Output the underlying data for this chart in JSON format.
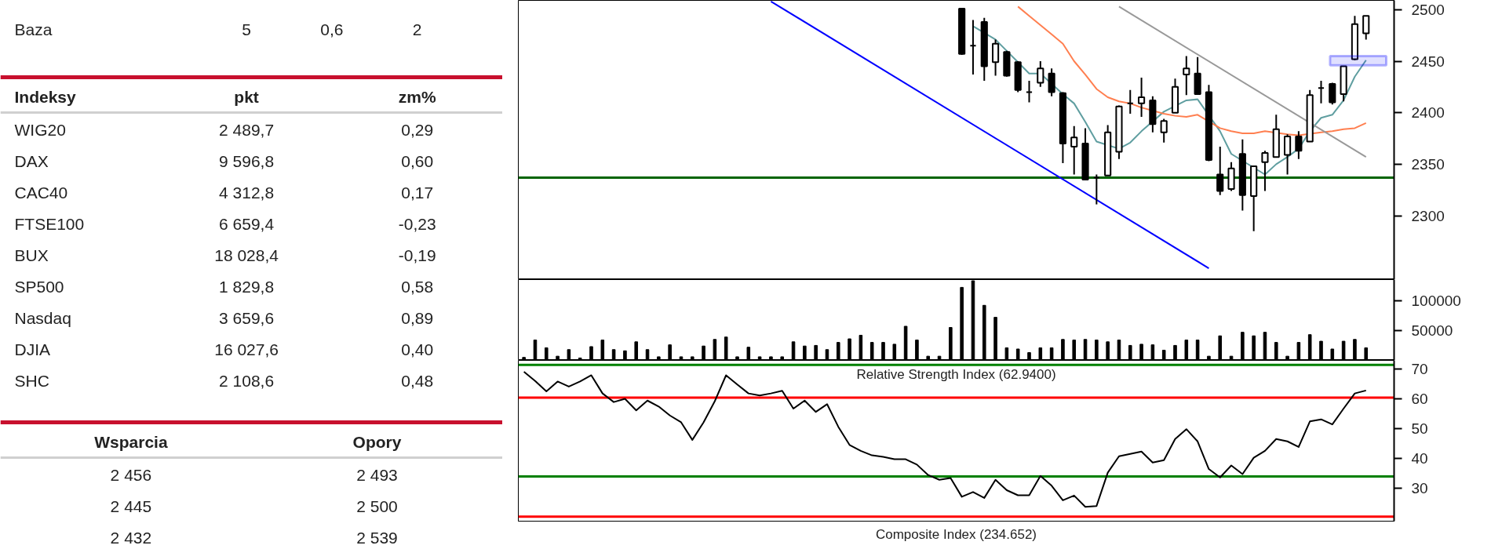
{
  "chart_data": [
    {
      "type": "other",
      "categories": [
        null,
        null,
        null,
        null
      ],
      "annotations": [
        "Baza",
        "5",
        "0,6",
        "2"
      ]
    },
    {
      "type": "other",
      "categories": [
        "Indeksy",
        "pkt",
        "zm%"
      ],
      "annotations": [
        "WIG20",
        "2 489,7",
        "0,29",
        "DAX",
        "9 596,8",
        "0,60",
        "CAC40",
        "4 312,8",
        "0,17",
        "FTSE100",
        "6 659,4",
        "-0,23",
        "BUX",
        "18 028,4",
        "-0,19",
        "SP500",
        "1 829,8",
        "0,58",
        "Nasdaq",
        "3 659,6",
        "0,89",
        "DJIA",
        "16 027,6",
        "0,40",
        "SHC",
        "2 108,6",
        "0,48"
      ]
    },
    {
      "type": "other",
      "categories": [
        "Wsparcia",
        "Opory"
      ],
      "annotations": [
        "2 456",
        "2 493",
        "2 445",
        "2 500",
        "2 432",
        "2 539"
      ]
    },
    {
      "type": "candlestick",
      "tick_labels": "y",
      "grid": false,
      "categories": [
        null,
        null,
        null,
        null,
        null,
        null,
        null,
        null,
        null,
        null,
        null,
        null,
        null,
        null,
        null,
        null,
        null,
        null,
        null,
        null,
        null,
        null,
        null,
        null,
        null,
        null,
        null,
        null,
        null,
        null,
        null,
        null,
        null,
        null,
        null,
        null,
        null,
        null,
        null,
        null,
        null,
        null,
        null,
        null,
        null,
        null,
        null,
        null,
        null,
        null,
        null,
        null,
        null,
        null,
        null,
        null,
        null,
        null,
        null,
        null,
        null,
        null,
        null,
        null,
        null,
        null,
        null,
        null,
        null,
        null,
        null,
        null,
        null,
        null,
        null,
        null
      ],
      "ohlc": [
        null,
        null,
        null,
        null,
        null,
        null,
        null,
        null,
        null,
        null,
        null,
        null,
        null,
        null,
        null,
        null,
        null,
        null,
        null,
        null,
        null,
        null,
        null,
        null,
        null,
        null,
        null,
        null,
        null,
        null,
        null,
        null,
        null,
        null,
        null,
        null,
        null,
        null,
        null,
        [
          2501,
          2501,
          2456,
          2457
        ],
        [
          2465,
          2490,
          2437,
          2465
        ],
        [
          2488,
          2492,
          2431,
          2445
        ],
        [
          2449,
          2471,
          2436,
          2467
        ],
        [
          2459,
          2460,
          2435,
          2436
        ],
        [
          2449,
          2450,
          2420,
          2422
        ],
        [
          2420,
          2431,
          2410,
          2420
        ],
        [
          2429,
          2450,
          2425,
          2443
        ],
        [
          2438,
          2443,
          2416,
          2420
        ],
        [
          2419,
          2420,
          2351,
          2370
        ],
        [
          2367,
          2387,
          2340,
          2376
        ],
        [
          2370,
          2385,
          2335,
          2335
        ],
        [
          2337,
          2340,
          2311,
          2337
        ],
        [
          2339,
          2388,
          2339,
          2381
        ],
        [
          2362,
          2407,
          2355,
          2406
        ],
        [
          2409,
          2422,
          2399,
          2409
        ],
        [
          2409,
          2434,
          2396,
          2415
        ],
        [
          2412,
          2416,
          2381,
          2389
        ],
        [
          2381,
          2394,
          2371,
          2392
        ],
        [
          2400,
          2433,
          2400,
          2425
        ],
        [
          2437,
          2455,
          2417,
          2443
        ],
        [
          2438,
          2454,
          2418,
          2418
        ],
        [
          2420,
          2427,
          2353,
          2354
        ],
        [
          2340,
          2367,
          2320,
          2324
        ],
        [
          2326,
          2352,
          2324,
          2346
        ],
        [
          2360,
          2374,
          2305,
          2320
        ],
        [
          2319,
          2348,
          2285,
          2348
        ],
        [
          2352,
          2363,
          2324,
          2361
        ],
        [
          2357,
          2398,
          2357,
          2384
        ],
        [
          2359,
          2379,
          2340,
          2377
        ],
        [
          2377,
          2382,
          2355,
          2363
        ],
        [
          2372,
          2422,
          2372,
          2417
        ],
        [
          2424,
          2431,
          2409,
          2424
        ],
        [
          2428,
          2429,
          2408,
          2410
        ],
        [
          2418,
          2445,
          2411,
          2445
        ],
        [
          2452,
          2494,
          2451,
          2486
        ],
        [
          2477,
          2494,
          2471,
          2494
        ]
      ],
      "series": [
        {
          "type": "line",
          "color": "#5f9ea0",
          "values": [
            null,
            null,
            null,
            null,
            null,
            null,
            null,
            null,
            null,
            null,
            null,
            null,
            null,
            null,
            null,
            null,
            null,
            null,
            null,
            null,
            null,
            null,
            null,
            null,
            null,
            null,
            null,
            null,
            null,
            null,
            null,
            null,
            null,
            null,
            null,
            null,
            null,
            null,
            null,
            null,
            2484,
            null,
            2471,
            2460,
            2449,
            2438,
            2438,
            null,
            2418,
            2409,
            2391,
            2372,
            null,
            2365,
            2371,
            2382,
            null,
            2401,
            null,
            2412,
            2413,
            null,
            2382,
            2360,
            null,
            null,
            2340,
            2350,
            2357,
            2365,
            2382,
            2395,
            2398,
            2412,
            2435,
            2451
          ]
        },
        {
          "type": "line",
          "color": "#ff7f50",
          "values": [
            null,
            null,
            null,
            null,
            null,
            null,
            null,
            null,
            null,
            null,
            null,
            null,
            null,
            null,
            null,
            null,
            null,
            null,
            null,
            null,
            null,
            null,
            null,
            null,
            null,
            null,
            null,
            null,
            null,
            null,
            null,
            null,
            null,
            null,
            null,
            null,
            null,
            null,
            null,
            null,
            null,
            null,
            null,
            null,
            2503,
            2494,
            2485,
            2476,
            2467,
            2450,
            2437,
            2423,
            2415,
            2411,
            2409,
            2405,
            null,
            2399,
            2397,
            2396,
            2398,
            null,
            2385,
            2382,
            2380,
            2380,
            2382,
            null,
            2379,
            2378,
            null,
            2381,
            2382,
            2384,
            2385,
            2390
          ]
        },
        {
          "type": "line",
          "color": "#0000ff",
          "values": [
            null,
            null,
            null,
            null,
            null,
            null,
            null,
            null,
            null,
            null,
            null,
            null,
            null,
            null,
            null,
            null,
            null,
            null,
            null,
            null,
            null,
            null,
            2508,
            null,
            null,
            null,
            null,
            null,
            null,
            null,
            null,
            null,
            null,
            null,
            null,
            null,
            null,
            null,
            null,
            null,
            null,
            null,
            null,
            null,
            null,
            null,
            null,
            null,
            null,
            null,
            null,
            null,
            null,
            null,
            null,
            null,
            null,
            null,
            null,
            null,
            null,
            2249,
            null,
            null,
            null,
            null,
            null,
            null,
            null,
            null,
            null,
            null,
            null,
            null,
            null,
            null
          ]
        },
        {
          "type": "line",
          "color": "#999999",
          "values": [
            null,
            null,
            null,
            null,
            null,
            null,
            null,
            null,
            null,
            null,
            null,
            null,
            null,
            null,
            null,
            null,
            null,
            null,
            null,
            null,
            null,
            null,
            null,
            null,
            null,
            null,
            null,
            null,
            null,
            null,
            null,
            null,
            null,
            null,
            null,
            null,
            null,
            null,
            null,
            null,
            null,
            null,
            null,
            null,
            null,
            null,
            null,
            null,
            null,
            null,
            null,
            null,
            null,
            2503,
            null,
            null,
            null,
            null,
            null,
            null,
            null,
            null,
            null,
            null,
            null,
            null,
            null,
            null,
            null,
            null,
            null,
            null,
            null,
            null,
            null,
            2357
          ]
        }
      ],
      "ylim": [
        2238,
        2509
      ],
      "yticks": [
        2300,
        2350,
        2400,
        2450,
        2500
      ],
      "ref_lines": [
        {
          "axis": "y",
          "value": 2337,
          "color": "#006400"
        }
      ],
      "bands": [
        {
          "axis": "y",
          "from": 2446,
          "to": 2455,
          "color": "#0000ff"
        }
      ]
    },
    {
      "type": "bar",
      "tick_labels": "y",
      "grid": false,
      "categories": [
        null,
        null,
        null,
        null,
        null,
        null,
        null,
        null,
        null,
        null,
        null,
        null,
        null,
        null,
        null,
        null,
        null,
        null,
        null,
        null,
        null,
        null,
        null,
        null,
        null,
        null,
        null,
        null,
        null,
        null,
        null,
        null,
        null,
        null,
        null,
        null,
        null,
        null,
        null,
        null,
        null,
        null,
        null,
        null,
        null,
        null,
        null,
        null,
        null,
        null,
        null,
        null,
        null,
        null,
        null,
        null,
        null,
        null,
        null,
        null,
        null,
        null,
        null,
        null,
        null,
        null,
        null,
        null,
        null,
        null,
        null,
        null,
        null,
        null,
        null,
        null
      ],
      "series": [
        {
          "color": "#000000",
          "values": [
            5000,
            34000,
            21000,
            7000,
            18000,
            4000,
            23000,
            34000,
            18000,
            16000,
            31000,
            18000,
            6000,
            26000,
            6000,
            6000,
            24000,
            35000,
            39000,
            6000,
            22000,
            6000,
            6000,
            6000,
            31000,
            24000,
            25000,
            18000,
            30000,
            36000,
            42000,
            30000,
            30000,
            27000,
            57000,
            34000,
            7000,
            7000,
            55000,
            122000,
            133000,
            92000,
            72000,
            21000,
            19000,
            13000,
            21000,
            21000,
            35000,
            34000,
            35000,
            34000,
            31000,
            34000,
            25000,
            27000,
            26000,
            17000,
            25000,
            34000,
            34000,
            7000,
            41000,
            7000,
            47000,
            41000,
            47000,
            30000,
            7000,
            30000,
            43000,
            32000,
            19000,
            32000,
            35000,
            21000
          ]
        }
      ],
      "ylim": [
        0,
        135000
      ],
      "yticks": [
        50000,
        100000
      ]
    },
    {
      "type": "line",
      "tick_labels": "y",
      "grid": false,
      "annotations": [
        "Relative Strength Index (62.9400)",
        "Composite Index (234.652)"
      ],
      "categories": [
        null,
        null,
        null,
        null,
        null,
        null,
        null,
        null,
        null,
        null,
        null,
        null,
        null,
        null,
        null,
        null,
        null,
        null,
        null,
        null,
        null,
        null,
        null,
        null,
        null,
        null,
        null,
        null,
        null,
        null,
        null,
        null,
        null,
        null,
        null,
        null,
        null,
        null,
        null,
        null,
        null,
        null,
        null,
        null,
        null,
        null,
        null,
        null,
        null,
        null,
        null,
        null,
        null,
        null,
        null,
        null,
        null,
        null,
        null,
        null,
        null,
        null,
        null,
        null,
        null,
        null,
        null,
        null,
        null,
        null,
        null,
        null,
        null,
        null,
        null,
        null
      ],
      "series": [
        {
          "color": "#000000",
          "values": [
            69.2,
            66.1,
            62.6,
            65.9,
            64.2,
            65.9,
            68.0,
            61.9,
            59.0,
            60.1,
            56.2,
            59.5,
            57.5,
            54.5,
            52.2,
            46.3,
            52.2,
            59.3,
            68.0,
            64.9,
            61.9,
            61.2,
            61.9,
            62.8,
            56.8,
            59.5,
            55.7,
            58.3,
            50.7,
            44.6,
            42.6,
            41.1,
            40.6,
            39.8,
            39.8,
            38.0,
            34.5,
            32.9,
            33.5,
            27.2,
            28.8,
            26.8,
            32.9,
            29.4,
            27.7,
            27.7,
            34.2,
            30.9,
            26.0,
            27.6,
            23.8,
            24.1,
            35.3,
            40.8,
            41.6,
            42.4,
            38.7,
            39.5,
            46.6,
            49.9,
            45.8,
            36.5,
            33.7,
            37.7,
            34.8,
            40.3,
            42.6,
            46.6,
            45.8,
            43.9,
            52.5,
            53.2,
            51.5,
            56.8,
            61.9,
            62.9
          ]
        }
      ],
      "ylim": [
        19,
        73
      ],
      "yticks": [
        30,
        40,
        50,
        60,
        70
      ],
      "ref_lines": [
        {
          "axis": "y",
          "value": 71.5,
          "color": "#008000"
        },
        {
          "axis": "y",
          "value": 60.5,
          "color": "#ff0000"
        },
        {
          "axis": "y",
          "value": 34,
          "color": "#008000"
        },
        {
          "axis": "y",
          "value": 20.5,
          "color": "#ff0000"
        }
      ]
    }
  ]
}
